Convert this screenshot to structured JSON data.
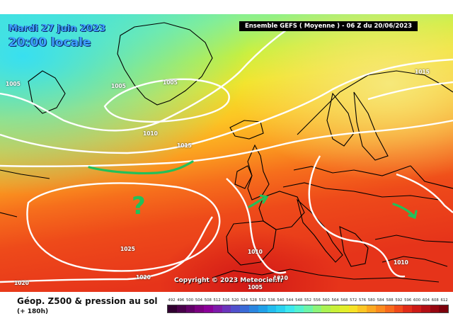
{
  "map": {
    "date_line": "Mardi 27 juin 2023",
    "time_line": "20:00 locale",
    "run_info": "Ensemble GEFS  ( Moyenne )  -  06 Z du 20/06/2023",
    "copyright": "Copyright © 2023 Meteociel.fr",
    "title": "Géop. Z500 & pression au sol",
    "subtitle": "(+ 180h)",
    "isobar_labels": [
      "1005",
      "1005",
      "1005",
      "1010",
      "1015",
      "1015",
      "1025",
      "1020",
      "1020",
      "1010",
      "1010",
      "1010",
      "1005"
    ],
    "annotation_question": "?",
    "scale_values": [
      "492",
      "496",
      "500",
      "504",
      "508",
      "512",
      "516",
      "520",
      "524",
      "528",
      "532",
      "536",
      "540",
      "544",
      "548",
      "552",
      "556",
      "560",
      "564",
      "568",
      "572",
      "576",
      "580",
      "584",
      "588",
      "592",
      "596",
      "600",
      "604",
      "608",
      "612"
    ],
    "scale_colors": [
      "#300030",
      "#48004a",
      "#600066",
      "#7a0080",
      "#8a0099",
      "#7d1aaa",
      "#6a34bb",
      "#5050cc",
      "#3a6ad6",
      "#2a86e0",
      "#20a0e8",
      "#22bcee",
      "#2ad2f0",
      "#3ce8ee",
      "#52f2d0",
      "#6cf4a8",
      "#8cf47a",
      "#aaf252",
      "#c8f038",
      "#e2ee2a",
      "#f6e226",
      "#fcc624",
      "#fca820",
      "#fc8a1e",
      "#f86a1c",
      "#f04a1a",
      "#e02c18",
      "#cc1a16",
      "#b20e14",
      "#960610",
      "#7c000c"
    ]
  }
}
